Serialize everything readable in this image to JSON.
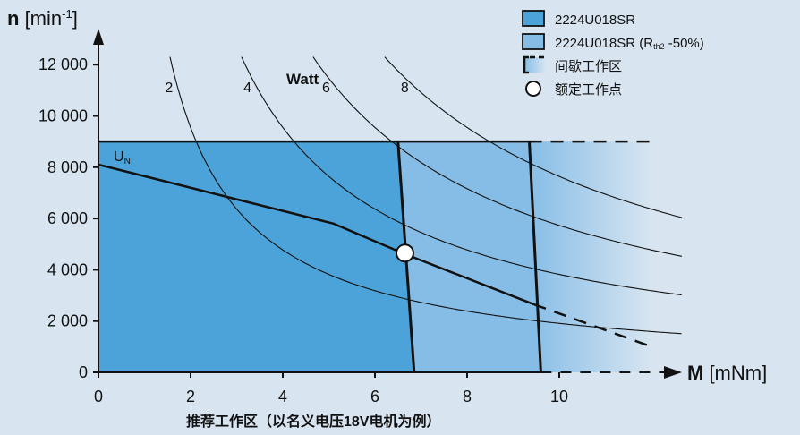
{
  "chart_data": {
    "type": "line",
    "y_axis": {
      "symbol": "n",
      "unit": "[min",
      "unit_exp": "-1",
      "unit_close": "]",
      "range": [
        0,
        13000
      ],
      "ticks": [
        0,
        2000,
        4000,
        6000,
        8000,
        10000,
        12000
      ],
      "tick_labels": [
        "0",
        "2 000",
        "4 000",
        "6 000",
        "8 000",
        "10 000",
        "12 000"
      ]
    },
    "x_axis": {
      "symbol": "M",
      "unit": "[mNm]",
      "range": [
        0,
        12.5
      ],
      "ticks": [
        0,
        2,
        4,
        6,
        8,
        10
      ],
      "tick_labels": [
        "0",
        "2",
        "4",
        "6",
        "8",
        "10"
      ]
    },
    "footnote": "推荐工作区（以名义电压18V电机为例）",
    "power_label": "Watt",
    "voltage_label": {
      "main": "U",
      "sub": "N"
    },
    "legend": [
      {
        "key": "region_continuous",
        "label": "2224U018SR",
        "color": "#4ba3d9"
      },
      {
        "key": "region_extended",
        "label": "2224U018SR (R",
        "label_sub": "th2",
        "label_suffix": " -50%)",
        "color": "#86bde6"
      },
      {
        "key": "region_intermittent",
        "label": "间歇工作区"
      },
      {
        "key": "rated_point",
        "label": "额定工作点"
      }
    ],
    "colors": {
      "background": "#d8e5f1",
      "continuous": "#4ba3d9",
      "extended": "#86bde6",
      "ink": "#111111"
    },
    "speed_limit_rpm": 9000,
    "region_continuous": {
      "top": 9000,
      "right_boundary": [
        [
          6.5,
          9000
        ],
        [
          6.85,
          0
        ]
      ]
    },
    "region_extended": {
      "right_boundary": [
        [
          9.35,
          9000
        ],
        [
          9.6,
          0
        ]
      ]
    },
    "region_intermittent": {
      "x_range": [
        9.6,
        12
      ]
    },
    "speed_torque_line": {
      "solid": [
        [
          0,
          8100
        ],
        [
          5.1,
          5800
        ],
        [
          6.6,
          4650
        ],
        [
          9.45,
          2650
        ]
      ],
      "dashed": [
        [
          9.45,
          2650
        ],
        [
          12,
          1000
        ]
      ]
    },
    "rated_point": {
      "torque": 6.65,
      "speed": 4650
    },
    "power_curves": [
      {
        "watts": 2,
        "label": "2"
      },
      {
        "watts": 4,
        "label": "4"
      },
      {
        "watts": 6,
        "label": "6"
      },
      {
        "watts": 8,
        "label": "8"
      }
    ]
  }
}
